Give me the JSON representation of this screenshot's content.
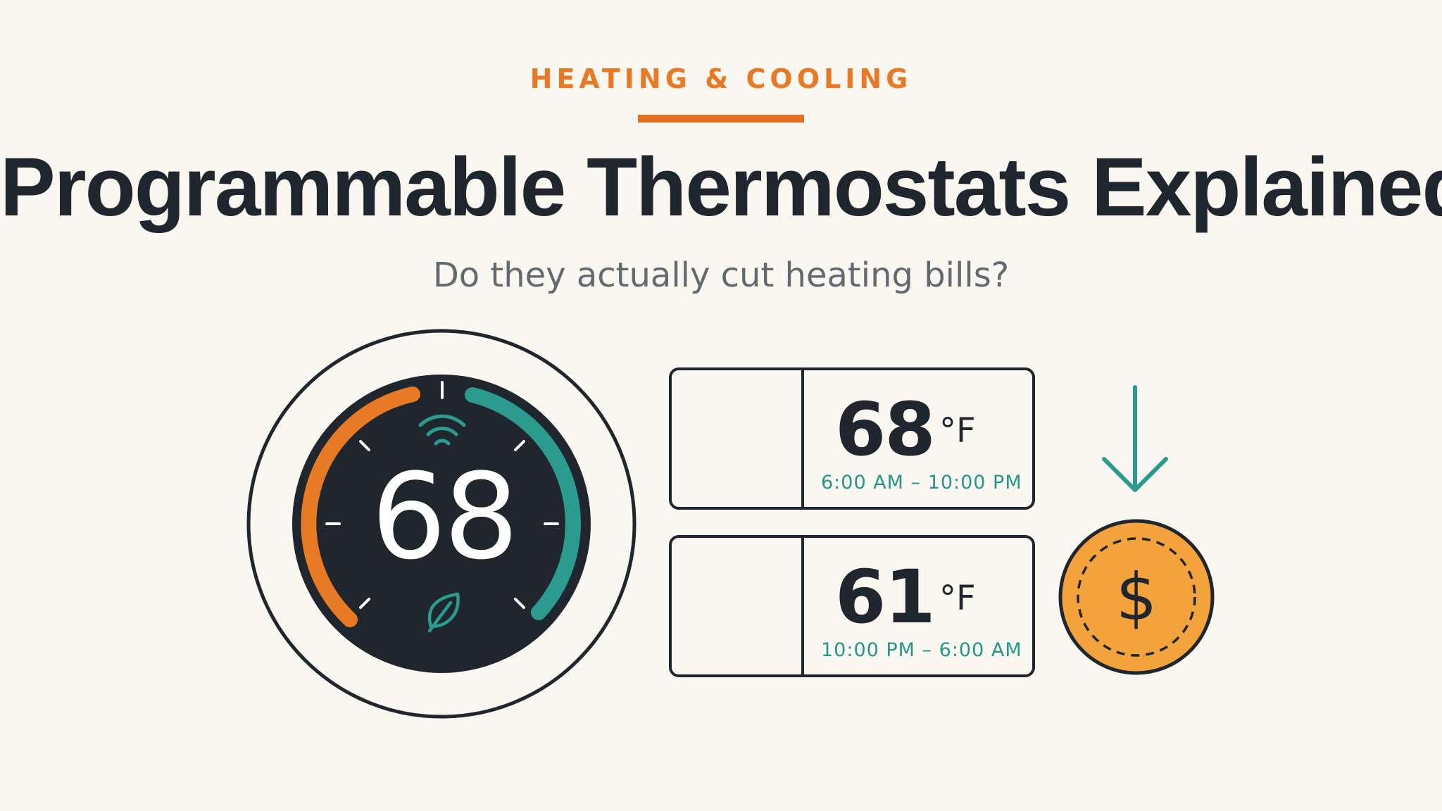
{
  "header": {
    "category": "HEATING & COOLING",
    "title": "Programmable Thermostats Explained",
    "subtitle": "Do they actually cut heating bills?"
  },
  "thermostat": {
    "display_temp": "68"
  },
  "schedule": [
    {
      "icon": "sun-icon",
      "temp": "68",
      "unit": "°F",
      "time_range": "6:00 AM – 10:00 PM"
    },
    {
      "icon": "moon-stars-icon",
      "temp": "61",
      "unit": "°F",
      "time_range": "10:00 PM – 6:00 AM"
    }
  ],
  "savings": {
    "icons": [
      "down-arrow-icon",
      "dollar-coin-icon"
    ]
  },
  "colors": {
    "accent_orange": "#e87a25",
    "accent_teal": "#2c9b8f",
    "dark": "#1f262d",
    "coin": "#f4a23c",
    "background": "#faf7f0"
  }
}
